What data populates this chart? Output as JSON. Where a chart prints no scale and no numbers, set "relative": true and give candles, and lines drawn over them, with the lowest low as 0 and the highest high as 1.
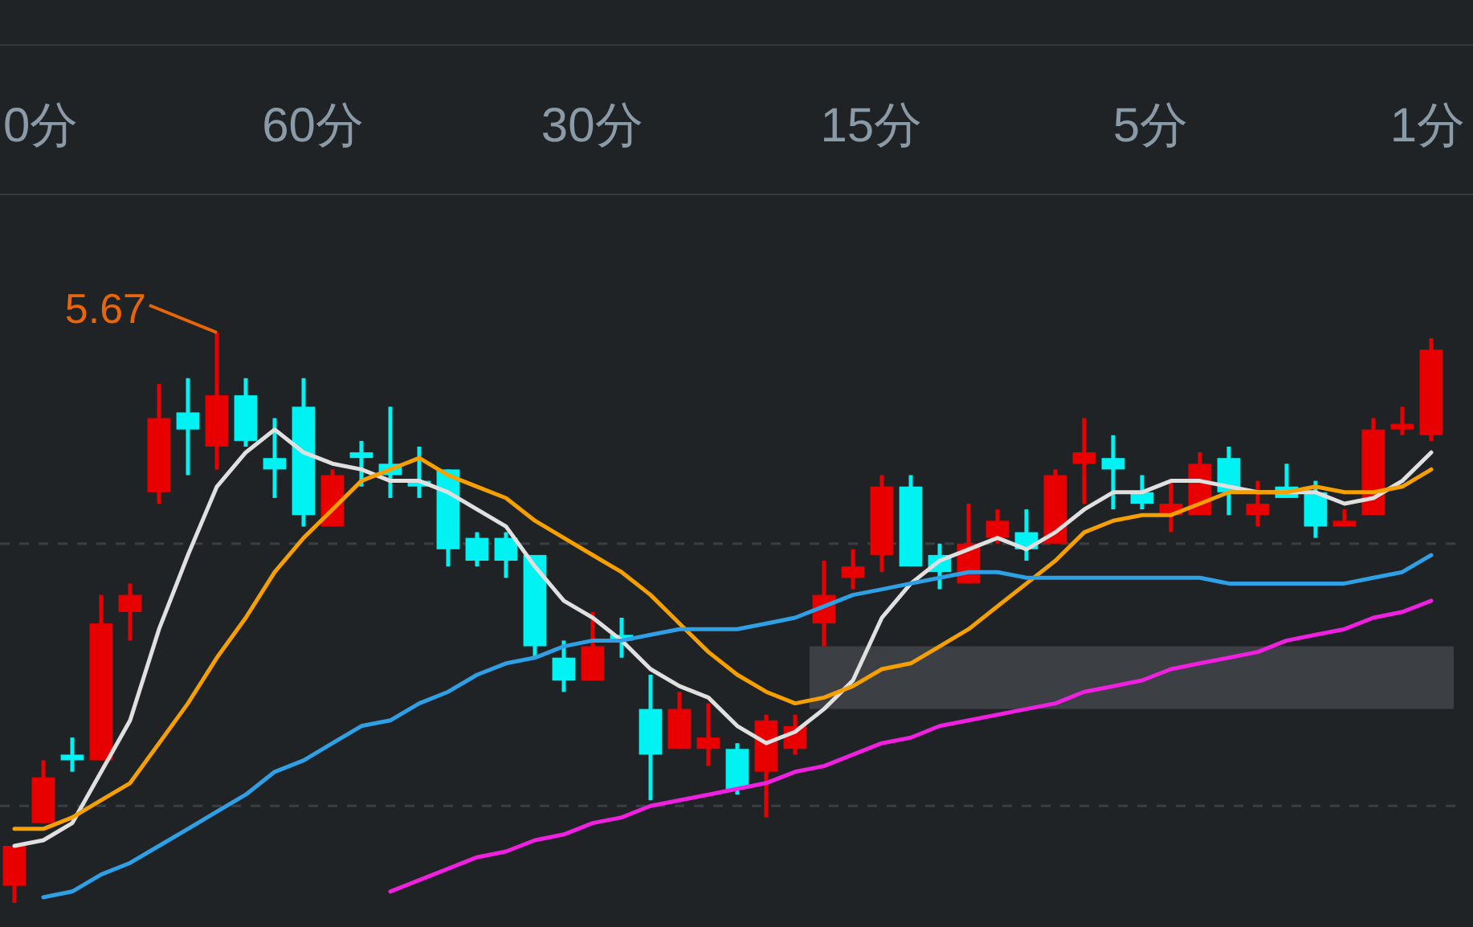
{
  "chart_data": {
    "type": "candlestick",
    "relative": true,
    "categories": [
      null,
      null,
      null,
      null,
      null,
      null,
      null,
      null,
      null,
      null,
      null,
      null,
      null,
      null,
      null,
      null,
      null,
      null,
      null,
      null,
      null,
      null,
      null,
      null,
      null,
      null,
      null,
      null,
      null,
      null,
      null,
      null,
      null,
      null,
      null,
      null,
      null,
      null,
      null,
      null,
      null,
      null,
      null,
      null,
      null,
      null,
      null,
      null,
      null,
      null
    ],
    "ohlc": [
      [
        0.03,
        0.1,
        0,
        0.1
      ],
      [
        0.14,
        0.25,
        0.14,
        0.22
      ],
      [
        0.26,
        0.29,
        0.23,
        0.25
      ],
      [
        0.25,
        0.54,
        0.25,
        0.49
      ],
      [
        0.51,
        0.56,
        0.46,
        0.54
      ],
      [
        0.72,
        0.91,
        0.7,
        0.85
      ],
      [
        0.86,
        0.92,
        0.75,
        0.83
      ],
      [
        0.8,
        1,
        0.76,
        0.89
      ],
      [
        0.89,
        0.92,
        0.8,
        0.81
      ],
      [
        0.78,
        0.85,
        0.71,
        0.76
      ],
      [
        0.87,
        0.92,
        0.66,
        0.68
      ],
      [
        0.66,
        0.76,
        0.66,
        0.75
      ],
      [
        0.79,
        0.81,
        0.73,
        0.78
      ],
      [
        0.77,
        0.87,
        0.71,
        0.75
      ],
      [
        0.74,
        0.8,
        0.71,
        0.73
      ],
      [
        0.76,
        0.76,
        0.59,
        0.62
      ],
      [
        0.64,
        0.65,
        0.59,
        0.6
      ],
      [
        0.64,
        0.65,
        0.57,
        0.6
      ],
      [
        0.61,
        0.61,
        0.43,
        0.45
      ],
      [
        0.43,
        0.46,
        0.37,
        0.39
      ],
      [
        0.39,
        0.51,
        0.39,
        0.45
      ],
      [
        0.47,
        0.5,
        0.43,
        0.46
      ],
      [
        0.34,
        0.4,
        0.18,
        0.26
      ],
      [
        0.27,
        0.37,
        0.27,
        0.34
      ],
      [
        0.27,
        0.35,
        0.24,
        0.29
      ],
      [
        0.27,
        0.28,
        0.19,
        0.2
      ],
      [
        0.23,
        0.33,
        0.15,
        0.32
      ],
      [
        0.27,
        0.33,
        0.26,
        0.31
      ],
      [
        0.49,
        0.6,
        0.45,
        0.54
      ],
      [
        0.57,
        0.62,
        0.55,
        0.59
      ],
      [
        0.61,
        0.75,
        0.58,
        0.73
      ],
      [
        0.73,
        0.75,
        0.59,
        0.59
      ],
      [
        0.61,
        0.63,
        0.55,
        0.58
      ],
      [
        0.56,
        0.7,
        0.56,
        0.63
      ],
      [
        0.64,
        0.69,
        0.63,
        0.67
      ],
      [
        0.65,
        0.69,
        0.6,
        0.62
      ],
      [
        0.63,
        0.76,
        0.63,
        0.75
      ],
      [
        0.77,
        0.85,
        0.7,
        0.79
      ],
      [
        0.78,
        0.82,
        0.69,
        0.76
      ],
      [
        0.72,
        0.75,
        0.69,
        0.7
      ],
      [
        0.68,
        0.74,
        0.65,
        0.7
      ],
      [
        0.68,
        0.79,
        0.68,
        0.77
      ],
      [
        0.78,
        0.8,
        0.68,
        0.72
      ],
      [
        0.68,
        0.74,
        0.66,
        0.7
      ],
      [
        0.73,
        0.77,
        0.71,
        0.71
      ],
      [
        0.72,
        0.74,
        0.64,
        0.66
      ],
      [
        0.66,
        0.69,
        0.66,
        0.67
      ],
      [
        0.68,
        0.85,
        0.68,
        0.83
      ],
      [
        0.83,
        0.87,
        0.82,
        0.84
      ],
      [
        0.82,
        0.99,
        0.81,
        0.97
      ]
    ],
    "series": [
      {
        "type": "line",
        "color": "#e0e0e0",
        "values": [
          0.1,
          0.11,
          0.14,
          0.23,
          0.32,
          0.48,
          0.61,
          0.73,
          0.79,
          0.83,
          0.79,
          0.77,
          0.76,
          0.74,
          0.74,
          0.72,
          0.69,
          0.66,
          0.59,
          0.53,
          0.5,
          0.46,
          0.41,
          0.38,
          0.36,
          0.31,
          0.28,
          0.3,
          0.34,
          0.39,
          0.5,
          0.56,
          0.6,
          0.62,
          0.64,
          0.62,
          0.65,
          0.69,
          0.72,
          0.72,
          0.74,
          0.74,
          0.73,
          0.72,
          0.72,
          0.72,
          0.7,
          0.71,
          0.74,
          0.79
        ]
      },
      {
        "type": "line",
        "color": "#f5a000",
        "values": [
          0.13,
          0.13,
          0.15,
          0.18,
          0.21,
          0.28,
          0.35,
          0.43,
          0.5,
          0.58,
          0.64,
          0.69,
          0.74,
          0.76,
          0.78,
          0.75,
          0.73,
          0.71,
          0.67,
          0.64,
          0.61,
          0.58,
          0.54,
          0.49,
          0.44,
          0.4,
          0.37,
          0.35,
          0.36,
          0.38,
          0.41,
          0.42,
          0.45,
          0.48,
          0.52,
          0.56,
          0.6,
          0.65,
          0.67,
          0.68,
          0.68,
          0.7,
          0.72,
          0.72,
          0.72,
          0.73,
          0.72,
          0.72,
          0.73,
          0.76
        ]
      },
      {
        "type": "line",
        "color": "#2fa0e6",
        "values": [
          null,
          0.01,
          0.02,
          0.05,
          0.07,
          0.1,
          0.13,
          0.16,
          0.19,
          0.23,
          0.25,
          0.28,
          0.31,
          0.32,
          0.35,
          0.37,
          0.4,
          0.42,
          0.43,
          0.45,
          0.46,
          0.46,
          0.47,
          0.48,
          0.48,
          0.48,
          0.49,
          0.5,
          0.52,
          0.54,
          0.55,
          0.56,
          0.57,
          0.58,
          0.58,
          0.57,
          0.57,
          0.57,
          0.57,
          0.57,
          0.57,
          0.57,
          0.56,
          0.56,
          0.56,
          0.56,
          0.56,
          0.57,
          0.58,
          0.61
        ]
      },
      {
        "type": "line",
        "color": "#f020e0",
        "values": [
          null,
          null,
          null,
          null,
          null,
          null,
          null,
          null,
          null,
          null,
          null,
          null,
          null,
          0.02,
          0.04,
          0.06,
          0.08,
          0.09,
          0.11,
          0.12,
          0.14,
          0.15,
          0.17,
          0.18,
          0.19,
          0.2,
          0.21,
          0.23,
          0.24,
          0.26,
          0.28,
          0.29,
          0.31,
          0.32,
          0.33,
          0.34,
          0.35,
          0.37,
          0.38,
          0.39,
          0.41,
          0.42,
          0.43,
          0.44,
          0.46,
          0.47,
          0.48,
          0.5,
          0.51,
          0.53
        ]
      }
    ],
    "bands": [
      {
        "axis": "y",
        "from": 0.34,
        "to": 0.45,
        "color": "#3c3f43"
      }
    ],
    "ref_lines": [
      {
        "axis": "y",
        "value": 0.63,
        "color": "#3a3f45",
        "line_style": "dashed"
      },
      {
        "axis": "y",
        "value": 0.17,
        "color": "#3a3f45",
        "line_style": "dashed"
      }
    ],
    "annotations": [
      "0分",
      "60分",
      "30分",
      "15分",
      "5分",
      "1分",
      "5.67"
    ]
  }
}
